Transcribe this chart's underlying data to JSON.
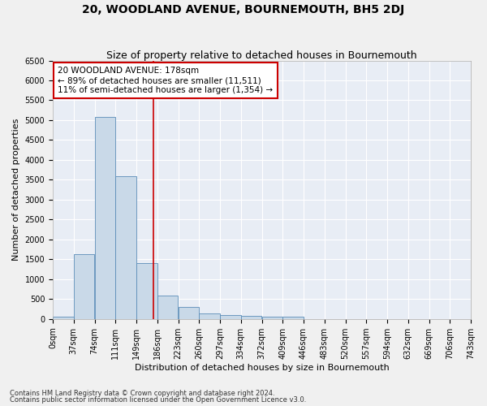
{
  "title": "20, WOODLAND AVENUE, BOURNEMOUTH, BH5 2DJ",
  "subtitle": "Size of property relative to detached houses in Bournemouth",
  "xlabel": "Distribution of detached houses by size in Bournemouth",
  "ylabel": "Number of detached properties",
  "footnote1": "Contains HM Land Registry data © Crown copyright and database right 2024.",
  "footnote2": "Contains public sector information licensed under the Open Government Licence v3.0.",
  "bin_labels": [
    "0sqm",
    "37sqm",
    "74sqm",
    "111sqm",
    "149sqm",
    "186sqm",
    "223sqm",
    "260sqm",
    "297sqm",
    "334sqm",
    "372sqm",
    "409sqm",
    "446sqm",
    "483sqm",
    "520sqm",
    "557sqm",
    "594sqm",
    "632sqm",
    "669sqm",
    "706sqm",
    "743sqm"
  ],
  "bar_values": [
    65,
    1625,
    5080,
    3580,
    1400,
    580,
    295,
    145,
    100,
    75,
    55,
    60,
    0,
    0,
    0,
    0,
    0,
    0,
    0,
    0
  ],
  "bar_color": "#c9d9e8",
  "bar_edge_color": "#5b8db8",
  "ylim": [
    0,
    6500
  ],
  "yticks": [
    0,
    500,
    1000,
    1500,
    2000,
    2500,
    3000,
    3500,
    4000,
    4500,
    5000,
    5500,
    6000,
    6500
  ],
  "property_size": 178,
  "bin_width": 37,
  "vline_color": "#cc0000",
  "annotation_text_line1": "20 WOODLAND AVENUE: 178sqm",
  "annotation_text_line2": "← 89% of detached houses are smaller (11,511)",
  "annotation_text_line3": "11% of semi-detached houses are larger (1,354) →",
  "annotation_box_color": "#ffffff",
  "annotation_box_edge": "#cc0000",
  "bg_color": "#e8edf5",
  "fig_bg_color": "#f0f0f0",
  "grid_color": "#ffffff",
  "title_fontsize": 10,
  "subtitle_fontsize": 9,
  "axis_label_fontsize": 8,
  "tick_fontsize": 7,
  "annotation_fontsize": 7.5,
  "footnote_fontsize": 6
}
